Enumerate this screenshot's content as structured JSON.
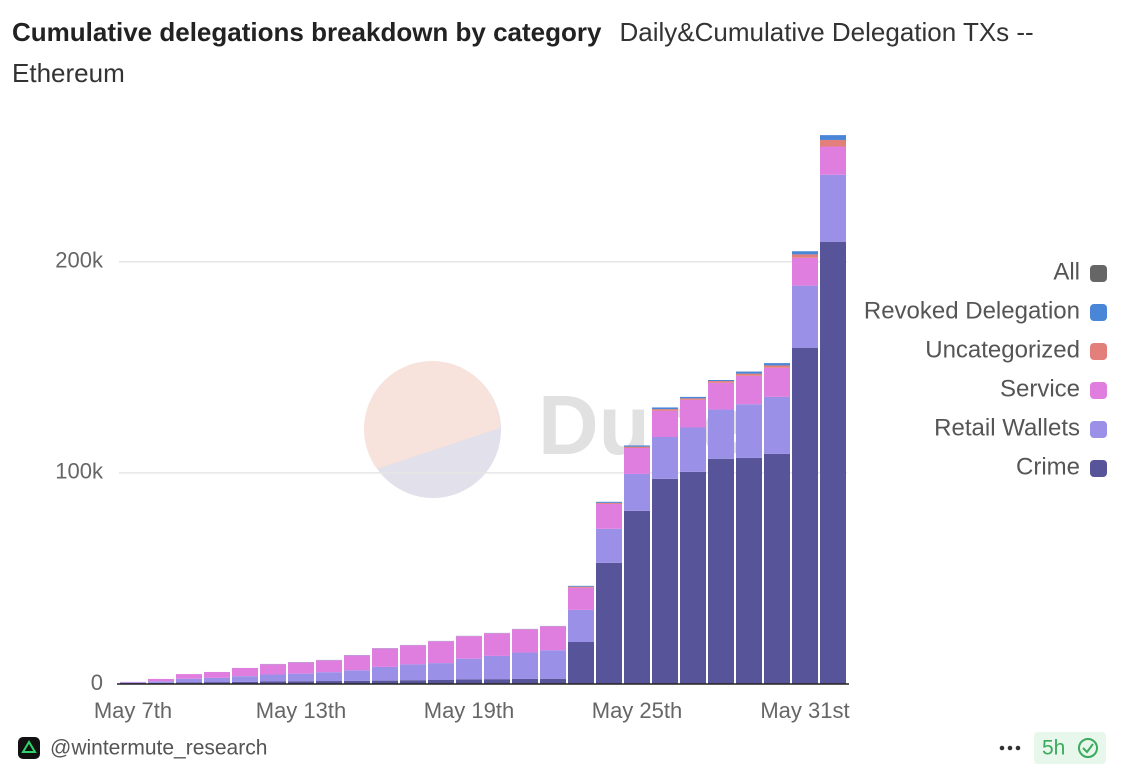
{
  "chart_data": {
    "type": "stacked-bar",
    "title": "Cumulative delegations breakdown by category",
    "subtitle": "Daily&Cumulative Delegation TXs -- Ethereum",
    "categories": [
      "May 7th",
      null,
      null,
      null,
      null,
      null,
      "May 13th",
      null,
      null,
      null,
      null,
      null,
      "May 19th",
      null,
      null,
      null,
      null,
      null,
      "May 25th",
      null,
      null,
      null,
      null,
      null,
      "May 31st",
      null
    ],
    "series": [
      {
        "name": "Crime",
        "color": "#58549a",
        "values": [
          500,
          500,
          800,
          900,
          1000,
          1200,
          1300,
          1400,
          1500,
          1600,
          1800,
          1900,
          2200,
          2300,
          2400,
          2500,
          19900,
          57400,
          82000,
          97200,
          100500,
          106700,
          107100,
          109000,
          159300,
          209500
        ]
      },
      {
        "name": "Retail Wallets",
        "color": "#9a90e8",
        "values": [
          300,
          800,
          1700,
          2000,
          2700,
          3300,
          3600,
          4200,
          5000,
          6500,
          7500,
          8000,
          9800,
          11000,
          12500,
          13500,
          15200,
          16100,
          17500,
          19800,
          21000,
          23300,
          25400,
          27000,
          29400,
          31700
        ]
      },
      {
        "name": "Service",
        "color": "#e07ee0",
        "values": [
          200,
          1100,
          2200,
          2800,
          3900,
          4800,
          5300,
          5600,
          7000,
          8700,
          9000,
          10300,
          10600,
          10700,
          11000,
          11300,
          10500,
          11800,
          12300,
          12400,
          13100,
          12700,
          13500,
          13800,
          13200,
          13400
        ]
      },
      {
        "name": "Uncategorized",
        "color": "#e37f7b",
        "values": [
          0,
          0,
          0,
          0,
          0,
          100,
          100,
          100,
          100,
          100,
          100,
          100,
          100,
          100,
          100,
          100,
          500,
          500,
          600,
          800,
          700,
          800,
          1000,
          1100,
          1600,
          3100
        ]
      },
      {
        "name": "Revoked Delegation",
        "color": "#4a86d8",
        "values": [
          0,
          0,
          0,
          0,
          0,
          100,
          100,
          100,
          100,
          100,
          100,
          100,
          100,
          100,
          100,
          100,
          400,
          500,
          600,
          800,
          700,
          500,
          1000,
          1100,
          1500,
          2300
        ]
      },
      {
        "name": "All",
        "color": "#666666",
        "values": [
          0,
          0,
          0,
          0,
          0,
          0,
          0,
          0,
          0,
          0,
          0,
          0,
          0,
          0,
          0,
          0,
          0,
          0,
          0,
          0,
          0,
          0,
          0,
          0,
          0,
          0
        ]
      }
    ],
    "ylim": [
      0,
      270000
    ],
    "yticks": [
      0,
      {
        "value": 100000,
        "label": "100k"
      },
      {
        "value": 200000,
        "label": "200k"
      }
    ],
    "grid": true,
    "legend": "right",
    "watermark": "Dune"
  },
  "footer": {
    "author": "@wintermute_research",
    "age": "5h"
  }
}
